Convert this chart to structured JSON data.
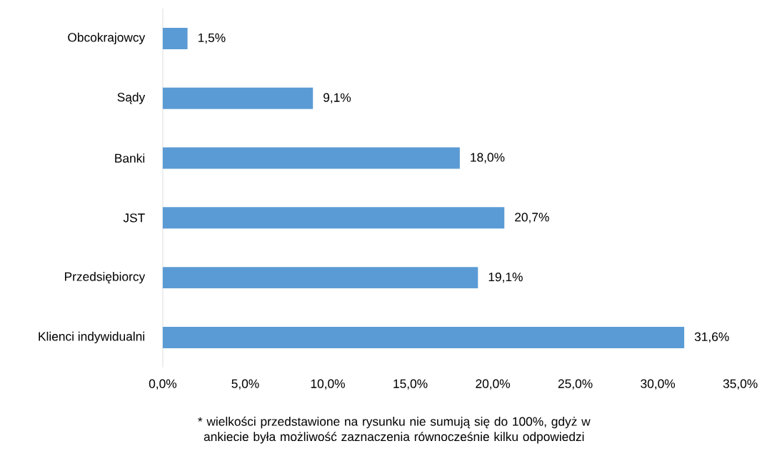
{
  "chart_data": {
    "type": "bar",
    "orientation": "horizontal",
    "categories": [
      "Obcokrajowcy",
      "Sądy",
      "Banki",
      "JST",
      "Przedsiębiorcy",
      "Klienci indywidualni"
    ],
    "values": [
      1.5,
      9.1,
      18.0,
      20.7,
      19.1,
      31.6
    ],
    "value_labels": [
      "1,5%",
      "9,1%",
      "18,0%",
      "20,7%",
      "19,1%",
      "31,6%"
    ],
    "color": "#5b9bd5",
    "xlim": [
      0,
      35
    ],
    "xticks": [
      {
        "value": 0,
        "label": "0,0%"
      },
      {
        "value": 5,
        "label": "5,0%"
      },
      {
        "value": 10,
        "label": "10,0%"
      },
      {
        "value": 15,
        "label": "15,0%"
      },
      {
        "value": 20,
        "label": "20,0%"
      },
      {
        "value": 25,
        "label": "25,0%"
      },
      {
        "value": 30,
        "label": "30,0%"
      },
      {
        "value": 35,
        "label": "35,0%"
      }
    ],
    "annotations": [
      "* wielkości przedstawione na rysunku nie sumują się do 100%, gdyż w ankiecie była możliwość zaznaczenia równocześnie kilku odpowiedzi"
    ]
  }
}
